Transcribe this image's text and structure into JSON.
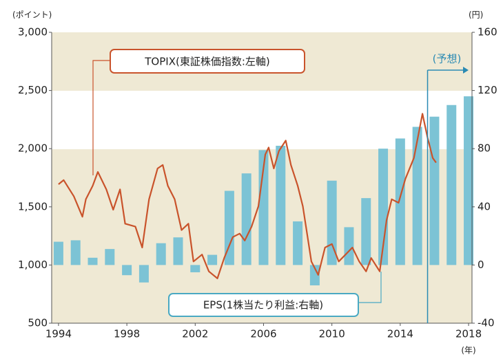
{
  "chart_data": {
    "type": "combo",
    "y_unit": "(ポイント)",
    "y2_unit": "(円)",
    "x_unit": "(年)",
    "forecast": {
      "x": 2015.6,
      "label": "(予想)"
    },
    "xlim": [
      1993.6,
      2018.2
    ],
    "xticks": [
      1994,
      1998,
      2002,
      2006,
      2010,
      2014,
      2018
    ],
    "ylim": [
      500,
      3000
    ],
    "yticks": [
      500,
      {
        "value": 1000,
        "label": "1,000"
      },
      {
        "value": 1500,
        "label": "1,500"
      },
      {
        "value": 2000,
        "label": "2,000"
      },
      {
        "value": 2500,
        "label": "2,500"
      },
      {
        "value": 3000,
        "label": "3,000"
      }
    ],
    "y2lim": [
      -40,
      160
    ],
    "y2ticks": [
      -40,
      0,
      40,
      80,
      120,
      160
    ],
    "series": [
      {
        "name": "EPS(1株当たり利益:右軸)",
        "type": "bar",
        "axis": "y2",
        "color": "#7cc3d5",
        "x": [
          1994,
          1995,
          1996,
          1997,
          1998,
          1999,
          2000,
          2001,
          2002,
          2003,
          2004,
          2005,
          2006,
          2007,
          2008,
          2009,
          2010,
          2011,
          2012,
          2013,
          2014,
          2015,
          2016,
          2017,
          2018
        ],
        "values": [
          16,
          17,
          5,
          11,
          -7,
          -12,
          15,
          19,
          -5,
          7,
          51,
          63,
          79,
          82,
          30,
          -14,
          58,
          26,
          46,
          80,
          87,
          95,
          102,
          110,
          116
        ]
      },
      {
        "name": "TOPIX(東証株価指数:左軸)",
        "type": "line",
        "color": "#c9532b",
        "x": [
          1994.0,
          1994.3,
          1994.9,
          1995.4,
          1995.6,
          1996.0,
          1996.3,
          1996.8,
          1997.2,
          1997.6,
          1997.9,
          1998.5,
          1998.9,
          1999.3,
          1999.8,
          2000.1,
          2000.4,
          2000.8,
          2001.2,
          2001.6,
          2001.9,
          2002.4,
          2002.8,
          2003.3,
          2003.7,
          2004.2,
          2004.6,
          2004.9,
          2005.3,
          2005.7,
          2006.1,
          2006.3,
          2006.6,
          2006.9,
          2007.3,
          2007.6,
          2008.0,
          2008.3,
          2008.8,
          2009.2,
          2009.6,
          2010.0,
          2010.4,
          2010.8,
          2011.2,
          2011.6,
          2012.0,
          2012.3,
          2012.8,
          2013.2,
          2013.5,
          2013.9,
          2014.3,
          2014.8,
          2015.3,
          2015.6,
          2015.9,
          2016.1
        ],
        "values": [
          1694,
          1730,
          1590,
          1415,
          1565,
          1680,
          1800,
          1650,
          1475,
          1650,
          1355,
          1330,
          1150,
          1565,
          1830,
          1860,
          1680,
          1565,
          1300,
          1355,
          1030,
          1090,
          945,
          885,
          1060,
          1240,
          1270,
          1210,
          1330,
          1505,
          1950,
          2010,
          1830,
          1980,
          2070,
          1860,
          1680,
          1505,
          1030,
          915,
          1150,
          1180,
          1030,
          1090,
          1150,
          1030,
          945,
          1060,
          945,
          1385,
          1565,
          1535,
          1740,
          1920,
          2300,
          2095,
          1920,
          1880
        ]
      }
    ]
  }
}
